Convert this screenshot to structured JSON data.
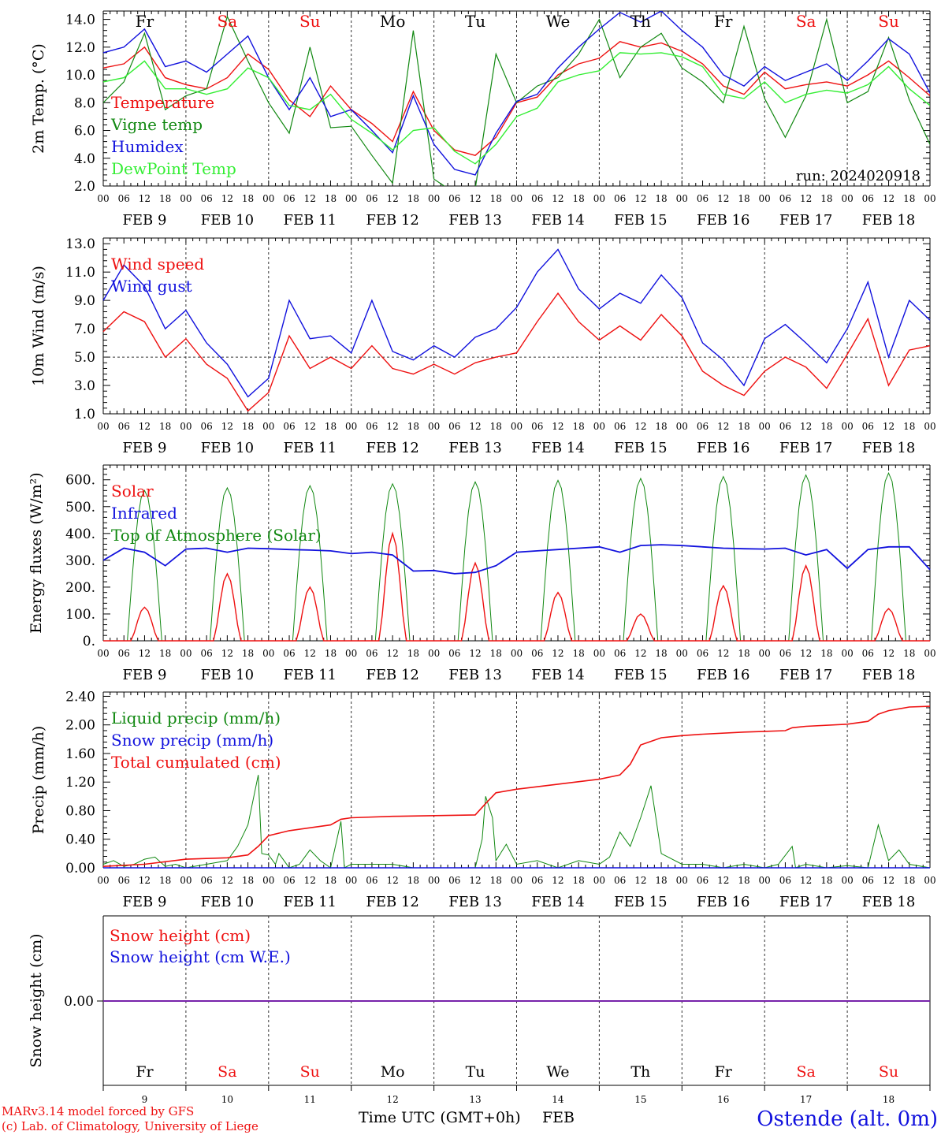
{
  "run_label": "run: 2024020918",
  "station": "Ostende (alt. 0m)",
  "credits": [
    "MARv3.14 model forced by GFS",
    "(c) Lab. of Climatology, University of Liege"
  ],
  "xaxis_title": "Time UTC (GMT+0h)",
  "month": "FEB",
  "hour_ticks": [
    "00",
    "06",
    "12",
    "18"
  ],
  "day_labels": [
    "FEB  9",
    "FEB 10",
    "FEB 11",
    "FEB 12",
    "FEB 13",
    "FEB 14",
    "FEB 15",
    "FEB 16",
    "FEB 17",
    "FEB 18"
  ],
  "day_numbers": [
    "9",
    "10",
    "11",
    "12",
    "13",
    "14",
    "15",
    "16",
    "17",
    "18"
  ],
  "weekdays": [
    {
      "label": "Fr",
      "weekend": false
    },
    {
      "label": "Sa",
      "weekend": true
    },
    {
      "label": "Su",
      "weekend": true
    },
    {
      "label": "Mo",
      "weekend": false
    },
    {
      "label": "Tu",
      "weekend": false
    },
    {
      "label": "We",
      "weekend": false
    },
    {
      "label": "Th",
      "weekend": false
    },
    {
      "label": "Fr",
      "weekend": false
    },
    {
      "label": "Sa",
      "weekend": true
    },
    {
      "label": "Su",
      "weekend": true
    }
  ],
  "colors": {
    "red": "#ee1111",
    "green": "#118811",
    "blue": "#1111dd",
    "lightgreen": "#33ee33",
    "purple": "#7722aa",
    "weekend": "#ee1111"
  },
  "chart_data": [
    {
      "type": "line",
      "ylabel": "2m Temp. (°C)",
      "ylim": [
        2,
        14.6
      ],
      "yticks": [
        "2.0",
        "4.0",
        "6.0",
        "8.0",
        "10.0",
        "12.0",
        "14.0"
      ],
      "ytick_values": [
        2,
        4,
        6,
        8,
        10,
        12,
        14
      ],
      "x_hours": [
        0,
        6,
        12,
        18,
        24,
        30,
        36,
        42,
        48,
        54,
        60,
        66,
        72,
        78,
        84,
        90,
        96,
        102,
        108,
        114,
        120,
        126,
        132,
        138,
        144,
        150,
        156,
        162,
        168,
        174,
        180,
        186,
        192,
        198,
        204,
        210,
        216,
        222,
        228,
        234,
        240
      ],
      "series": [
        {
          "name": "Temperature",
          "color": "red",
          "values": [
            10.5,
            10.8,
            12.0,
            9.8,
            9.3,
            9.0,
            9.8,
            11.5,
            10.4,
            8.2,
            7.0,
            9.2,
            7.5,
            6.5,
            5.2,
            8.8,
            6.0,
            4.6,
            4.2,
            5.5,
            8.0,
            8.4,
            10.0,
            10.8,
            11.2,
            12.4,
            12.0,
            12.3,
            11.7,
            10.8,
            9.2,
            8.6,
            10.2,
            9.0,
            9.3,
            9.5,
            9.2,
            10.0,
            11.0,
            9.8,
            8.5
          ]
        },
        {
          "name": "Vigne temp",
          "color": "green",
          "values": [
            8.0,
            9.5,
            13.0,
            7.5,
            8.5,
            9.0,
            14.2,
            11.0,
            8.0,
            5.8,
            12.0,
            6.2,
            6.3,
            4.2,
            2.2,
            13.2,
            2.5,
            1.5,
            1.8,
            11.5,
            8.0,
            9.2,
            9.8,
            11.5,
            14.0,
            9.8,
            12.0,
            13.0,
            10.5,
            9.5,
            8.0,
            13.5,
            8.3,
            5.5,
            8.5,
            14.0,
            8.0,
            8.8,
            12.7,
            8.2,
            5.0
          ]
        },
        {
          "name": "Humidex",
          "color": "blue",
          "values": [
            11.6,
            12.0,
            13.3,
            10.6,
            11.0,
            10.2,
            11.5,
            12.8,
            9.8,
            7.5,
            9.8,
            7.0,
            7.5,
            6.0,
            4.4,
            8.5,
            5.0,
            3.2,
            2.8,
            5.8,
            8.1,
            8.6,
            10.5,
            12.0,
            13.3,
            14.5,
            13.8,
            14.6,
            13.2,
            12.0,
            10.0,
            9.2,
            10.6,
            9.6,
            10.2,
            10.8,
            9.6,
            11.0,
            12.6,
            11.5,
            8.7
          ]
        },
        {
          "name": "DewPoint Temp",
          "color": "lightgreen",
          "values": [
            9.5,
            9.8,
            11.0,
            9.0,
            9.0,
            8.6,
            9.0,
            10.5,
            9.8,
            7.8,
            7.5,
            8.6,
            6.8,
            5.8,
            4.6,
            6.0,
            6.2,
            4.5,
            3.6,
            5.0,
            7.0,
            7.6,
            9.5,
            10.0,
            10.3,
            11.6,
            11.5,
            11.6,
            11.3,
            10.6,
            8.6,
            8.3,
            9.5,
            8.0,
            8.6,
            8.9,
            8.7,
            9.3,
            10.6,
            9.0,
            7.8
          ]
        }
      ]
    },
    {
      "type": "line",
      "ylabel": "10m Wind (m/s)",
      "ylim": [
        1,
        13.4
      ],
      "yticks": [
        "1.0",
        "3.0",
        "5.0",
        "7.0",
        "9.0",
        "11.0",
        "13.0"
      ],
      "ytick_values": [
        1,
        3,
        5,
        7,
        9,
        11,
        13
      ],
      "ref_line": 5.0,
      "x_hours": [
        0,
        6,
        12,
        18,
        24,
        30,
        36,
        42,
        48,
        54,
        60,
        66,
        72,
        78,
        84,
        90,
        96,
        102,
        108,
        114,
        120,
        126,
        132,
        138,
        144,
        150,
        156,
        162,
        168,
        174,
        180,
        186,
        192,
        198,
        204,
        210,
        216,
        222,
        228,
        234,
        240
      ],
      "series": [
        {
          "name": "Wind speed",
          "color": "red",
          "values": [
            6.8,
            8.2,
            7.5,
            5.0,
            6.3,
            4.5,
            3.5,
            1.2,
            2.5,
            6.5,
            4.2,
            5.0,
            4.2,
            5.8,
            4.2,
            3.8,
            4.5,
            3.8,
            4.6,
            5.0,
            5.3,
            7.5,
            9.5,
            7.5,
            6.2,
            7.2,
            6.2,
            8.0,
            6.5,
            4.0,
            3.0,
            2.3,
            4.0,
            5.0,
            4.3,
            2.8,
            5.2,
            7.7,
            3.0,
            5.5,
            5.8
          ]
        },
        {
          "name": "Wind gust",
          "color": "blue",
          "values": [
            9.0,
            11.5,
            10.0,
            7.0,
            8.3,
            6.0,
            4.5,
            2.2,
            3.5,
            9.0,
            6.3,
            6.5,
            5.3,
            9.0,
            5.4,
            4.8,
            5.8,
            5.0,
            6.4,
            7.0,
            8.5,
            11.0,
            12.6,
            9.8,
            8.4,
            9.5,
            8.8,
            10.8,
            9.2,
            6.0,
            4.8,
            3.0,
            6.3,
            7.3,
            6.0,
            4.6,
            7.0,
            10.3,
            5.0,
            9.0,
            7.6
          ]
        }
      ]
    },
    {
      "type": "line",
      "ylabel": "Energy fluxes (W/m²)",
      "ylim": [
        0,
        655
      ],
      "yticks": [
        "0.",
        "100.",
        "200.",
        "300.",
        "400.",
        "500.",
        "600."
      ],
      "ytick_values": [
        0,
        100,
        200,
        300,
        400,
        500,
        600
      ],
      "series": [
        {
          "name": "Solar",
          "color": "red",
          "peaks": [
            125,
            250,
            200,
            400,
            290,
            180,
            100,
            205,
            280,
            120
          ]
        },
        {
          "name": "Infrared",
          "color": "blue",
          "x_hours": [
            0,
            6,
            12,
            18,
            24,
            30,
            36,
            42,
            48,
            54,
            60,
            66,
            72,
            78,
            84,
            90,
            96,
            102,
            108,
            114,
            120,
            126,
            132,
            138,
            144,
            150,
            156,
            162,
            168,
            174,
            180,
            186,
            192,
            198,
            204,
            210,
            216,
            222,
            228,
            234,
            240
          ],
          "values": [
            300,
            345,
            330,
            280,
            342,
            345,
            330,
            345,
            343,
            340,
            338,
            335,
            325,
            330,
            320,
            260,
            262,
            250,
            255,
            280,
            330,
            335,
            340,
            345,
            350,
            330,
            355,
            358,
            355,
            350,
            345,
            343,
            342,
            345,
            320,
            340,
            270,
            340,
            350,
            350,
            265
          ]
        },
        {
          "name": "Top of Atmosphere (Solar)",
          "color": "green",
          "peaks": [
            560,
            570,
            578,
            585,
            592,
            598,
            605,
            612,
            618,
            625
          ]
        }
      ]
    },
    {
      "type": "line",
      "ylabel": "Precip (mm/h)",
      "ylim": [
        0,
        2.46
      ],
      "yticks": [
        "0.00",
        "0.40",
        "0.80",
        "1.20",
        "1.60",
        "2.00",
        "2.40"
      ],
      "ytick_values": [
        0,
        0.4,
        0.8,
        1.2,
        1.6,
        2.0,
        2.4
      ],
      "series": [
        {
          "name": "Liquid precip (mm/h)",
          "color": "green",
          "x_hours": [
            0,
            3,
            6,
            9,
            12,
            15,
            18,
            21,
            24,
            30,
            36,
            39,
            42,
            45,
            46,
            48,
            50,
            51,
            54,
            57,
            60,
            63,
            66,
            69,
            70,
            72,
            84,
            90,
            96,
            102,
            108,
            110,
            111,
            113,
            114,
            117,
            120,
            126,
            132,
            138,
            144,
            147,
            150,
            153,
            156,
            159,
            162,
            168,
            174,
            180,
            186,
            192,
            196,
            200,
            201,
            204,
            210,
            216,
            222,
            225,
            228,
            231,
            234,
            240
          ],
          "values": [
            0.05,
            0.1,
            0.02,
            0.05,
            0.12,
            0.15,
            0.02,
            0.05,
            0.0,
            0.05,
            0.1,
            0.3,
            0.6,
            1.3,
            0.2,
            0.18,
            0.05,
            0.2,
            0.0,
            0.05,
            0.25,
            0.1,
            0.0,
            0.65,
            0.0,
            0.05,
            0.05,
            0.0,
            0.0,
            0.0,
            0.0,
            0.4,
            1.0,
            0.7,
            0.1,
            0.33,
            0.05,
            0.1,
            0.0,
            0.1,
            0.05,
            0.15,
            0.5,
            0.3,
            0.7,
            1.15,
            0.2,
            0.05,
            0.05,
            0.0,
            0.05,
            0.0,
            0.05,
            0.3,
            0.0,
            0.05,
            0.0,
            0.03,
            0.0,
            0.6,
            0.1,
            0.25,
            0.05,
            0.0
          ]
        },
        {
          "name": "Snow precip (mm/h)",
          "color": "blue",
          "x_hours": [
            0,
            240
          ],
          "values": [
            0,
            0
          ]
        },
        {
          "name": "Total cumulated (cm)",
          "color": "red",
          "x_hours": [
            0,
            12,
            24,
            36,
            42,
            45,
            48,
            54,
            66,
            69,
            72,
            84,
            108,
            111,
            114,
            120,
            132,
            144,
            150,
            153,
            156,
            162,
            168,
            174,
            186,
            192,
            198,
            200,
            204,
            216,
            222,
            225,
            228,
            234,
            240
          ],
          "values": [
            0.02,
            0.05,
            0.12,
            0.14,
            0.18,
            0.3,
            0.45,
            0.52,
            0.6,
            0.68,
            0.7,
            0.72,
            0.74,
            0.9,
            1.05,
            1.1,
            1.17,
            1.24,
            1.3,
            1.45,
            1.72,
            1.82,
            1.85,
            1.87,
            1.9,
            1.91,
            1.92,
            1.96,
            1.98,
            2.01,
            2.05,
            2.15,
            2.2,
            2.25,
            2.26
          ]
        }
      ]
    },
    {
      "type": "line",
      "ylabel": "Snow height (cm)",
      "yticks": [
        "0.00"
      ],
      "ytick_values": [
        0
      ],
      "series": [
        {
          "name": "Snow height (cm)",
          "color": "red",
          "x_hours": [
            0,
            240
          ],
          "values": [
            0,
            0
          ]
        },
        {
          "name": "Snow height (cm W.E.)",
          "color": "blue",
          "x_hours": [
            0,
            240
          ],
          "values": [
            0,
            0
          ]
        }
      ]
    }
  ]
}
